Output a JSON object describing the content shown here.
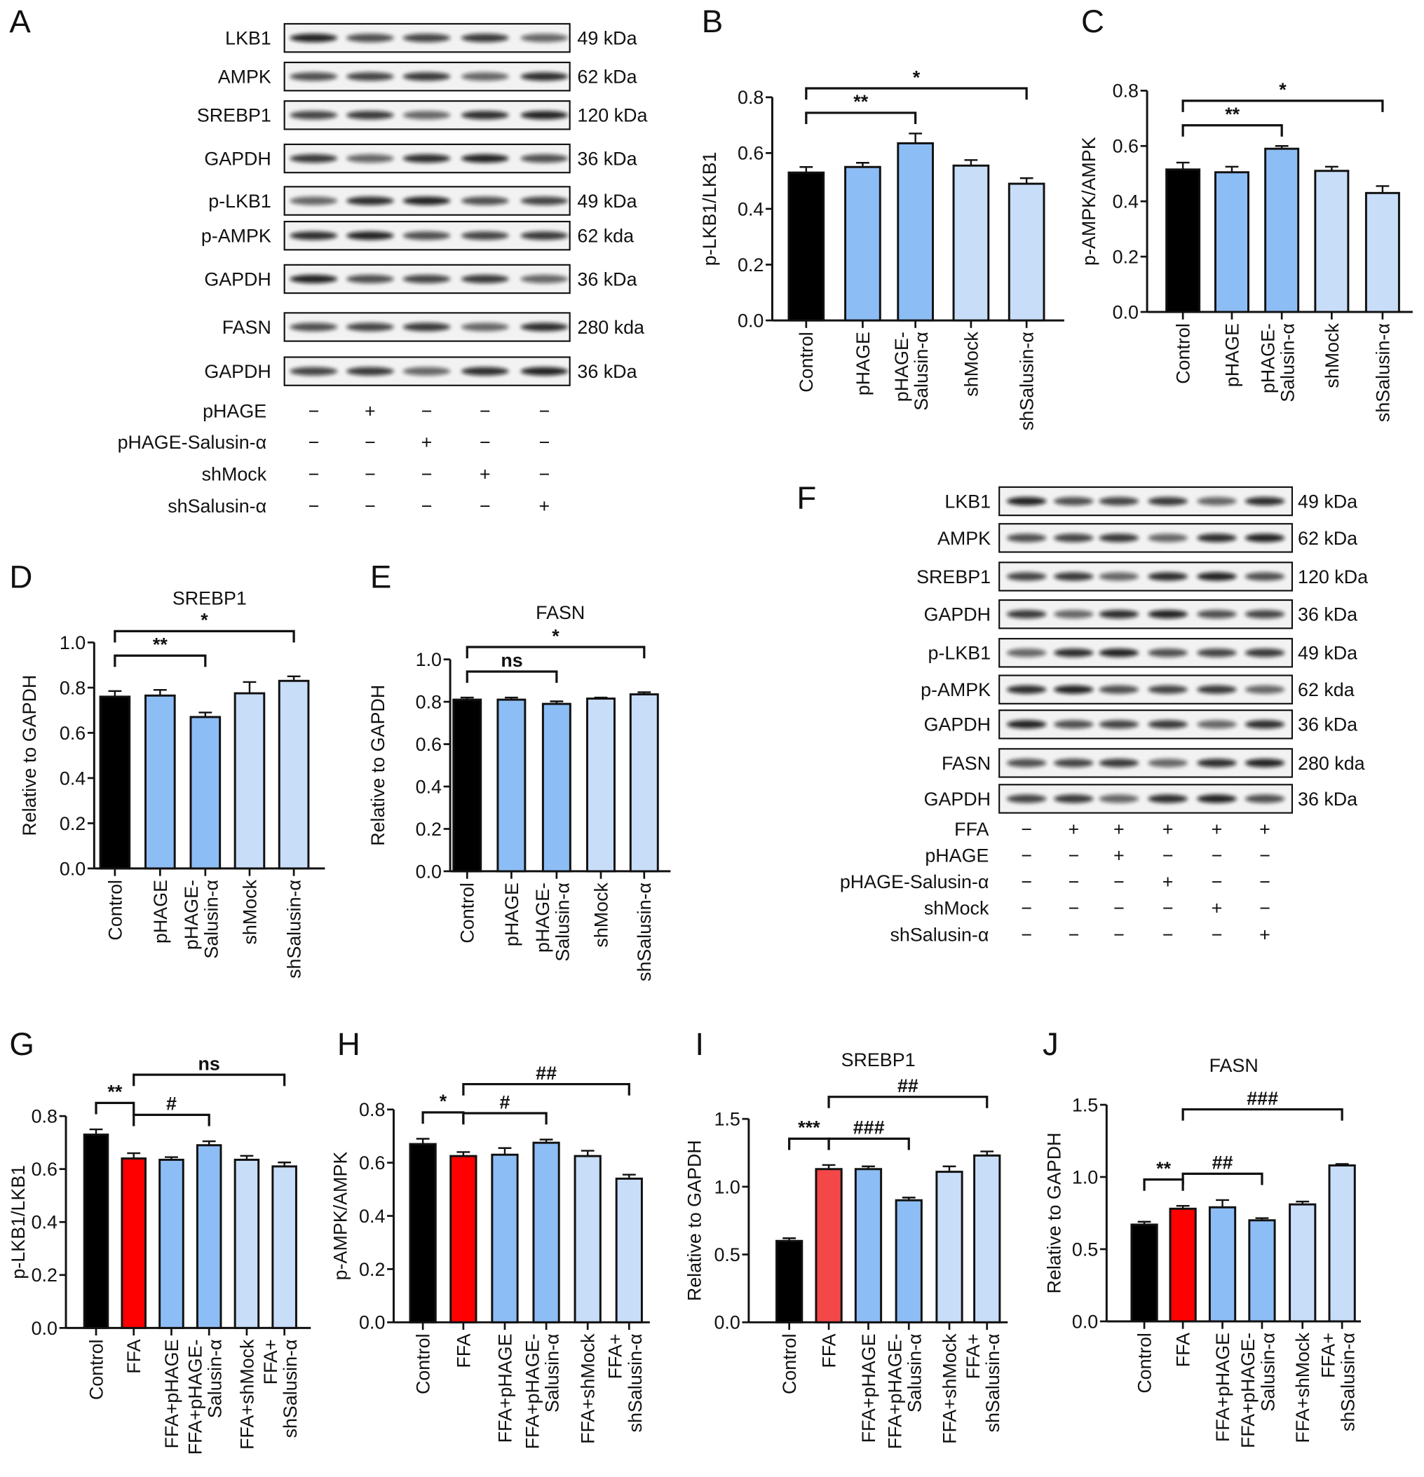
{
  "panels": {
    "A": "A",
    "B": "B",
    "C": "C",
    "D": "D",
    "E": "E",
    "F": "F",
    "G": "G",
    "H": "H",
    "I": "I",
    "J": "J"
  },
  "colors": {
    "control": "#000000",
    "ffa": "#ff0000",
    "ffa_light": "#f44848",
    "overexpression": "#8dbdf5",
    "knockdown": "#c8ddf8",
    "axis": "#111111"
  },
  "blots": {
    "A": {
      "rows": [
        {
          "name": "LKB1",
          "size": "49 kDa"
        },
        {
          "name": "AMPK",
          "size": "62 kDa"
        },
        {
          "name": "SREBP1",
          "size": "120 kDa"
        },
        {
          "name": "GAPDH",
          "size": "36 kDa"
        },
        {
          "name": "p-LKB1",
          "size": "49 kDa"
        },
        {
          "name": "p-AMPK",
          "size": "62 kda"
        },
        {
          "name": "GAPDH",
          "size": "36 kDa"
        },
        {
          "name": "FASN",
          "size": "280 kda"
        },
        {
          "name": "GAPDH",
          "size": "36 kDa"
        }
      ],
      "treatments": [
        {
          "name": "pHAGE",
          "marks": [
            "−",
            "+",
            "−",
            "−",
            "−"
          ]
        },
        {
          "name": "pHAGE-Salusin-α",
          "marks": [
            "−",
            "−",
            "+",
            "−",
            "−"
          ]
        },
        {
          "name": "shMock",
          "marks": [
            "−",
            "−",
            "−",
            "+",
            "−"
          ]
        },
        {
          "name": "shSalusin-α",
          "marks": [
            "−",
            "−",
            "−",
            "−",
            "+"
          ]
        }
      ]
    },
    "F": {
      "rows": [
        {
          "name": "LKB1",
          "size": "49 kDa"
        },
        {
          "name": "AMPK",
          "size": "62 kDa"
        },
        {
          "name": "SREBP1",
          "size": "120 kDa"
        },
        {
          "name": "GAPDH",
          "size": "36 kDa"
        },
        {
          "name": "p-LKB1",
          "size": "49 kDa"
        },
        {
          "name": "p-AMPK",
          "size": "62 kda"
        },
        {
          "name": "GAPDH",
          "size": "36 kDa"
        },
        {
          "name": "FASN",
          "size": "280 kda"
        },
        {
          "name": "GAPDH",
          "size": "36 kDa"
        }
      ],
      "treatments": [
        {
          "name": "FFA",
          "marks": [
            "−",
            "+",
            "+",
            "+",
            "+",
            "+"
          ]
        },
        {
          "name": "pHAGE",
          "marks": [
            "−",
            "−",
            "+",
            "−",
            "−",
            "−"
          ]
        },
        {
          "name": "pHAGE-Salusin-α",
          "marks": [
            "−",
            "−",
            "−",
            "+",
            "−",
            "−"
          ]
        },
        {
          "name": "shMock",
          "marks": [
            "−",
            "−",
            "−",
            "−",
            "+",
            "−"
          ]
        },
        {
          "name": "shSalusin-α",
          "marks": [
            "−",
            "−",
            "−",
            "−",
            "−",
            "+"
          ]
        }
      ]
    }
  },
  "chart_data": [
    {
      "panel": "B",
      "type": "bar",
      "title": "",
      "ylabel": "p-LKB1/LKB1",
      "ylim": [
        0,
        0.8
      ],
      "yticks": [
        "0.0",
        "0.2",
        "0.4",
        "0.6",
        "0.8"
      ],
      "categories": [
        "Control",
        "pHAGE",
        "pHAGE-Salusin-α",
        "shMock",
        "shSalusin-α"
      ],
      "values": [
        0.53,
        0.55,
        0.635,
        0.555,
        0.49
      ],
      "errors": [
        0.02,
        0.015,
        0.035,
        0.02,
        0.02
      ],
      "bar_colors": [
        "control",
        "overexpression",
        "overexpression",
        "knockdown",
        "knockdown"
      ],
      "annotations": [
        {
          "from": 0,
          "to": 2,
          "label": "**"
        },
        {
          "from": 0,
          "to": 4,
          "label": "*"
        }
      ]
    },
    {
      "panel": "C",
      "type": "bar",
      "title": "",
      "ylabel": "p-AMPK/AMPK",
      "ylim": [
        0,
        0.8
      ],
      "yticks": [
        "0.0",
        "0.2",
        "0.4",
        "0.6",
        "0.8"
      ],
      "categories": [
        "Control",
        "pHAGE",
        "pHAGE-Salusin-α",
        "shMock",
        "shSalusin-α"
      ],
      "values": [
        0.515,
        0.505,
        0.59,
        0.51,
        0.43
      ],
      "errors": [
        0.025,
        0.02,
        0.01,
        0.015,
        0.025
      ],
      "bar_colors": [
        "control",
        "overexpression",
        "overexpression",
        "knockdown",
        "knockdown"
      ],
      "annotations": [
        {
          "from": 0,
          "to": 2,
          "label": "**"
        },
        {
          "from": 0,
          "to": 4,
          "label": "*"
        }
      ]
    },
    {
      "panel": "D",
      "type": "bar",
      "title": "SREBP1",
      "ylabel": "Relative to GAPDH",
      "ylim": [
        0,
        1.0
      ],
      "yticks": [
        "0.0",
        "0.2",
        "0.4",
        "0.6",
        "0.8",
        "1.0"
      ],
      "categories": [
        "Control",
        "pHAGE",
        "pHAGE-Salusin-α",
        "shMock",
        "shSalusin-α"
      ],
      "values": [
        0.76,
        0.765,
        0.67,
        0.775,
        0.83
      ],
      "errors": [
        0.025,
        0.025,
        0.02,
        0.05,
        0.02
      ],
      "bar_colors": [
        "control",
        "overexpression",
        "overexpression",
        "knockdown",
        "knockdown"
      ],
      "annotations": [
        {
          "from": 0,
          "to": 2,
          "label": "**"
        },
        {
          "from": 0,
          "to": 4,
          "label": "*"
        }
      ]
    },
    {
      "panel": "E",
      "type": "bar",
      "title": "FASN",
      "ylabel": "Relative to GAPDH",
      "ylim": [
        0,
        1.0
      ],
      "yticks": [
        "0.0",
        "0.2",
        "0.4",
        "0.6",
        "0.8",
        "1.0"
      ],
      "categories": [
        "Control",
        "pHAGE",
        "pHAGE-Salusin-α",
        "shMock",
        "shSalusin-α"
      ],
      "values": [
        0.81,
        0.81,
        0.79,
        0.815,
        0.835
      ],
      "errors": [
        0.01,
        0.01,
        0.012,
        0.005,
        0.01
      ],
      "bar_colors": [
        "control",
        "overexpression",
        "overexpression",
        "knockdown",
        "knockdown"
      ],
      "annotations": [
        {
          "from": 0,
          "to": 2,
          "label": "ns"
        },
        {
          "from": 0,
          "to": 4,
          "label": "*"
        }
      ]
    },
    {
      "panel": "G",
      "type": "bar",
      "title": "",
      "ylabel": "p-LKB1/LKB1",
      "ylim": [
        0,
        0.8
      ],
      "yticks": [
        "0.0",
        "0.2",
        "0.4",
        "0.6",
        "0.8"
      ],
      "categories": [
        "Control",
        "FFA",
        "FFA+pHAGE",
        "FFA+pHAGE-Salusin-α",
        "FFA+shMock",
        "FFA+shSalusin-α"
      ],
      "values": [
        0.73,
        0.64,
        0.635,
        0.69,
        0.635,
        0.61
      ],
      "errors": [
        0.02,
        0.02,
        0.01,
        0.015,
        0.015,
        0.015
      ],
      "bar_colors": [
        "control",
        "ffa",
        "overexpression",
        "overexpression",
        "knockdown",
        "knockdown"
      ],
      "annotations": [
        {
          "from": 0,
          "to": 1,
          "label": "**"
        },
        {
          "from": 1,
          "to": 3,
          "label": "#"
        },
        {
          "from": 1,
          "to": 5,
          "label": "ns"
        }
      ]
    },
    {
      "panel": "H",
      "type": "bar",
      "title": "",
      "ylabel": "p-AMPK/AMPK",
      "ylim": [
        0,
        0.8
      ],
      "yticks": [
        "0.0",
        "0.2",
        "0.4",
        "0.6",
        "0.8"
      ],
      "categories": [
        "Control",
        "FFA",
        "FFA+pHAGE",
        "FFA+pHAGE-Salusin-α",
        "FFA+shMock",
        "FFA+shSalusin-α"
      ],
      "values": [
        0.67,
        0.625,
        0.63,
        0.675,
        0.625,
        0.54
      ],
      "errors": [
        0.02,
        0.015,
        0.025,
        0.012,
        0.02,
        0.015
      ],
      "bar_colors": [
        "control",
        "ffa",
        "overexpression",
        "overexpression",
        "knockdown",
        "knockdown"
      ],
      "annotations": [
        {
          "from": 0,
          "to": 1,
          "label": "*"
        },
        {
          "from": 1,
          "to": 3,
          "label": "#"
        },
        {
          "from": 1,
          "to": 5,
          "label": "##"
        }
      ]
    },
    {
      "panel": "I",
      "type": "bar",
      "title": "SREBP1",
      "ylabel": "Relative to GAPDH",
      "ylim": [
        0,
        1.5
      ],
      "yticks": [
        "0.0",
        "0.5",
        "1.0",
        "1.5"
      ],
      "categories": [
        "Control",
        "FFA",
        "FFA+pHAGE",
        "FFA+pHAGE-Salusin-α",
        "FFA+shMock",
        "FFA+shSalusin-α"
      ],
      "values": [
        0.6,
        1.13,
        1.13,
        0.9,
        1.11,
        1.23
      ],
      "errors": [
        0.02,
        0.03,
        0.02,
        0.02,
        0.04,
        0.03
      ],
      "bar_colors": [
        "control",
        "ffa_light",
        "overexpression",
        "overexpression",
        "knockdown",
        "knockdown"
      ],
      "annotations": [
        {
          "from": 0,
          "to": 1,
          "label": "***"
        },
        {
          "from": 1,
          "to": 3,
          "label": "###"
        },
        {
          "from": 1,
          "to": 5,
          "label": "##"
        }
      ]
    },
    {
      "panel": "J",
      "type": "bar",
      "title": "FASN",
      "ylabel": "Relative to GAPDH",
      "ylim": [
        0,
        1.5
      ],
      "yticks": [
        "0.0",
        "0.5",
        "1.0",
        "1.5"
      ],
      "categories": [
        "Control",
        "FFA",
        "FFA+pHAGE",
        "FFA+pHAGE-Salusin-α",
        "FFA+shMock",
        "FFA+shSalusin-α"
      ],
      "values": [
        0.67,
        0.78,
        0.79,
        0.7,
        0.81,
        1.08
      ],
      "errors": [
        0.02,
        0.02,
        0.05,
        0.015,
        0.02,
        0.01
      ],
      "bar_colors": [
        "control",
        "ffa",
        "overexpression",
        "overexpression",
        "knockdown",
        "knockdown"
      ],
      "annotations": [
        {
          "from": 0,
          "to": 1,
          "label": "**"
        },
        {
          "from": 1,
          "to": 3,
          "label": "##"
        },
        {
          "from": 1,
          "to": 5,
          "label": "###"
        }
      ]
    }
  ]
}
